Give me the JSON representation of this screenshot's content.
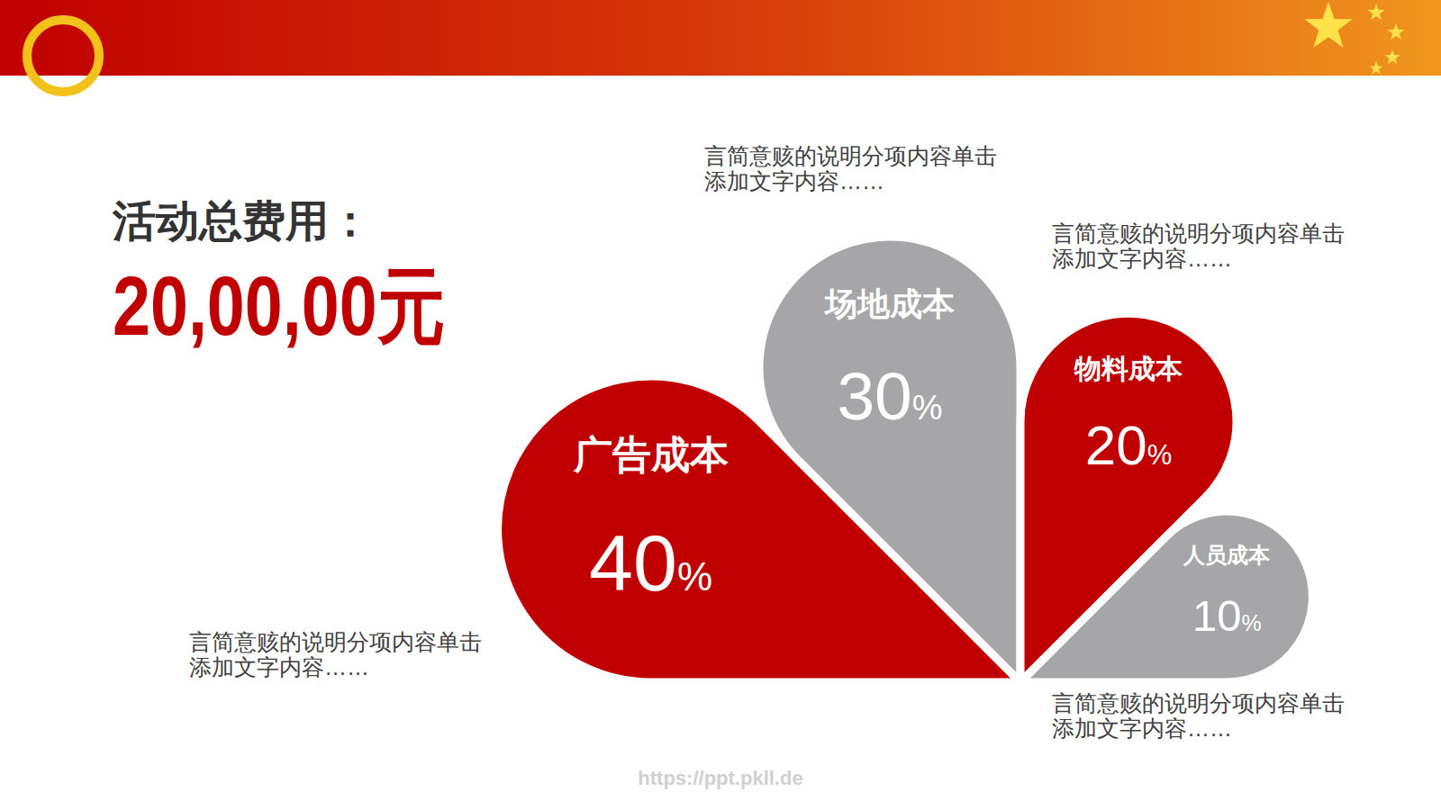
{
  "chart_data": {
    "type": "petal",
    "title": "活动总费用：",
    "subtitle": "20,00,00元",
    "categories": [
      "广告成本",
      "场地成本",
      "物料成本",
      "人员成本"
    ],
    "values": [
      40,
      30,
      20,
      10
    ],
    "value_labels": [
      "40%",
      "30%",
      "20%",
      "10%"
    ],
    "colors": [
      "#c00000",
      "#a6a6a8",
      "#c00000",
      "#a6a6a8"
    ],
    "data_labels": true,
    "annotations": [
      "言简意赅的说明分项内容单击添加文字内容……",
      "言简意赅的说明分项内容单击添加文字内容……",
      "言简意赅的说明分项内容单击添加文字内容……",
      "言简意赅的说明分项内容单击添加文字内容……"
    ],
    "source": "https://ppt.pkll.de"
  }
}
